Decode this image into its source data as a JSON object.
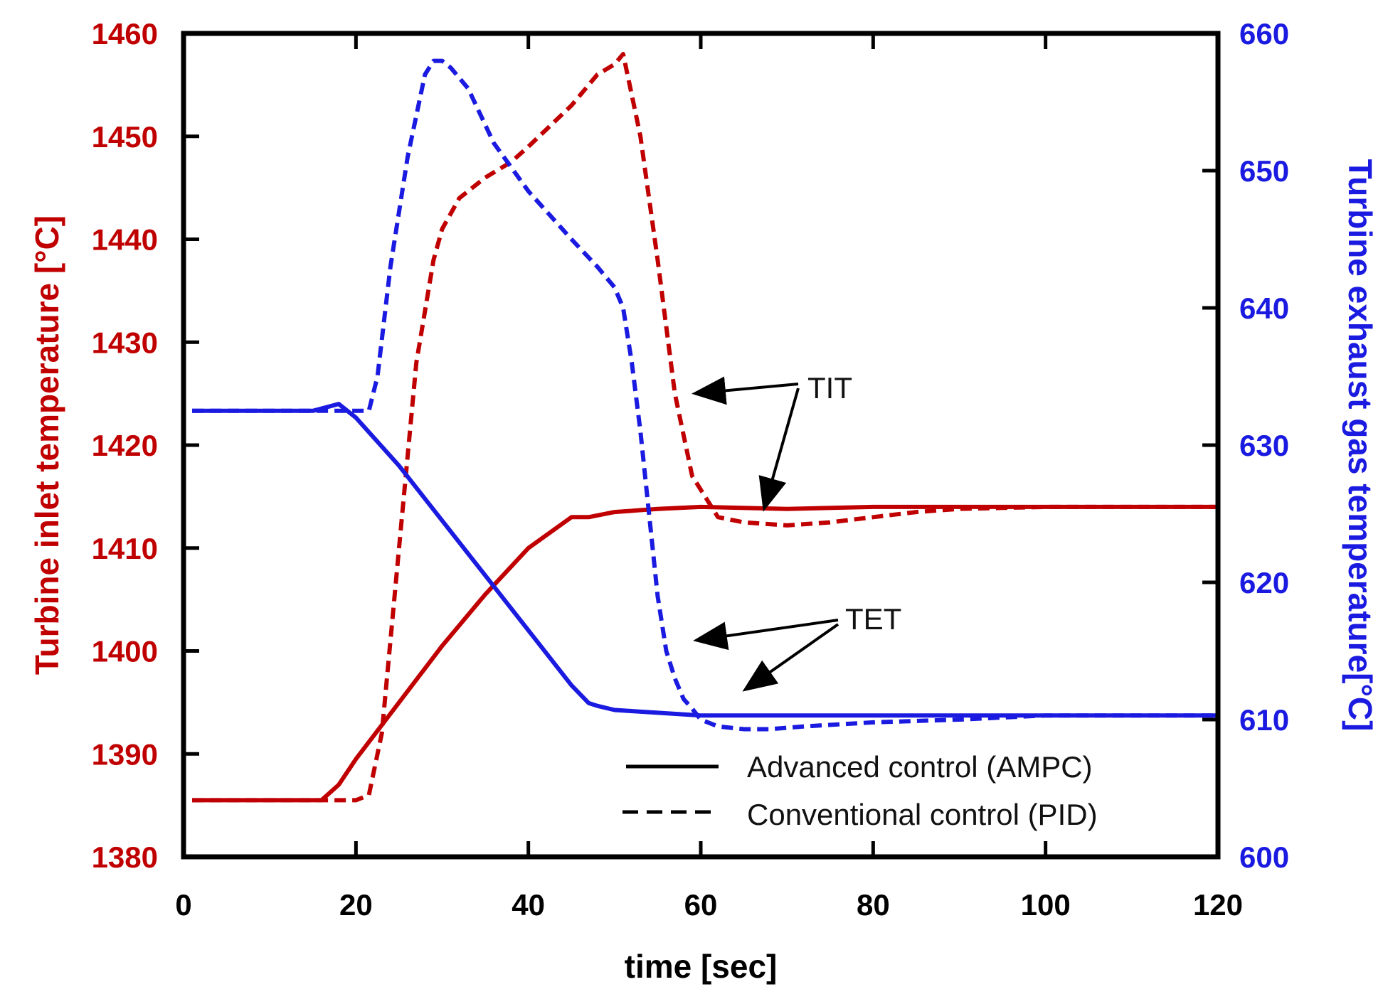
{
  "chart_data": {
    "type": "line",
    "xlabel": "time [sec]",
    "ylabel_left": "Turbine inlet temperature [°C]",
    "ylabel_right": "Turbine exhaust gas temperature[°C]",
    "xlim": [
      0,
      120
    ],
    "ylim_left": [
      1380,
      1460
    ],
    "ylim_right": [
      600,
      660
    ],
    "xticks": [
      0,
      20,
      40,
      60,
      80,
      100,
      120
    ],
    "yticks_left": [
      1380,
      1390,
      1400,
      1410,
      1420,
      1430,
      1440,
      1450,
      1460
    ],
    "yticks_right": [
      600,
      610,
      620,
      630,
      640,
      650,
      660
    ],
    "colors": {
      "left_axis": "#c00000",
      "right_axis": "#1a1ae0",
      "tit": "#c00000",
      "tet": "#1a1ae0"
    },
    "legend": {
      "position": "bottom-right",
      "entries": [
        {
          "label": "Advanced control (AMPC)",
          "style": "solid"
        },
        {
          "label": "Conventional control (PID)",
          "style": "dashed"
        }
      ]
    },
    "annotations": [
      {
        "text": "TIT",
        "points_to": [
          "TIT PID",
          "TIT AMPC"
        ]
      },
      {
        "text": "TET",
        "points_to": [
          "TET PID",
          "TET AMPC"
        ]
      }
    ],
    "series": [
      {
        "name": "TIT AMPC",
        "axis": "left",
        "style": "solid",
        "color": "#c00000",
        "x": [
          1,
          16,
          18,
          20,
          25,
          30,
          35,
          40,
          45,
          47,
          50,
          55,
          60,
          70,
          80,
          90,
          100,
          110,
          120
        ],
        "y": [
          1385.5,
          1385.5,
          1387.0,
          1389.5,
          1395.0,
          1400.5,
          1405.5,
          1410.0,
          1413.0,
          1413.0,
          1413.5,
          1413.8,
          1414.0,
          1413.8,
          1414.0,
          1414.0,
          1414.0,
          1414.0,
          1414.0
        ]
      },
      {
        "name": "TIT PID",
        "axis": "left",
        "style": "dashed",
        "color": "#c00000",
        "x": [
          1,
          20,
          21.5,
          23,
          25,
          27,
          29,
          30,
          32,
          35,
          38,
          40,
          45,
          48,
          50,
          51,
          52,
          53,
          55,
          57,
          59,
          62,
          65,
          70,
          75,
          80,
          85,
          90,
          100,
          110,
          120
        ],
        "y": [
          1385.5,
          1385.5,
          1386.0,
          1392.0,
          1410.0,
          1428.0,
          1438.0,
          1441.0,
          1444.0,
          1446.0,
          1447.5,
          1449.0,
          1453.0,
          1456.0,
          1457.0,
          1458.0,
          1454.0,
          1450.0,
          1438.0,
          1425.0,
          1417.0,
          1413.0,
          1412.5,
          1412.2,
          1412.5,
          1413.0,
          1413.5,
          1413.8,
          1414.0,
          1414.0,
          1414.0
        ]
      },
      {
        "name": "TET AMPC",
        "axis": "right",
        "style": "solid",
        "color": "#1a1ae0",
        "x": [
          1,
          15,
          18,
          20,
          25,
          30,
          35,
          40,
          45,
          47,
          48,
          50,
          55,
          60,
          65,
          80,
          100,
          120
        ],
        "y": [
          632.5,
          632.5,
          633.0,
          632.0,
          628.5,
          624.5,
          620.5,
          616.5,
          612.5,
          611.2,
          611.0,
          610.7,
          610.5,
          610.3,
          610.3,
          610.3,
          610.3,
          610.3
        ]
      },
      {
        "name": "TET PID",
        "axis": "right",
        "style": "dashed",
        "color": "#1a1ae0",
        "x": [
          1,
          20,
          21.5,
          22.5,
          24,
          26,
          28,
          29,
          30,
          31,
          33,
          36,
          40,
          45,
          48,
          50,
          51,
          52,
          53,
          54,
          55,
          56,
          57,
          58,
          59,
          60,
          62,
          65,
          68,
          72,
          80,
          90,
          100,
          110,
          120
        ],
        "y": [
          632.5,
          632.5,
          632.5,
          635.0,
          643.0,
          651.0,
          657.0,
          658.0,
          658.0,
          657.5,
          656.0,
          652.0,
          648.5,
          645.0,
          643.0,
          641.5,
          640.0,
          636.0,
          631.0,
          625.0,
          619.0,
          615.0,
          613.0,
          611.5,
          610.8,
          610.0,
          609.5,
          609.3,
          609.3,
          609.5,
          609.8,
          610.0,
          610.3,
          610.3,
          610.3
        ]
      }
    ]
  }
}
